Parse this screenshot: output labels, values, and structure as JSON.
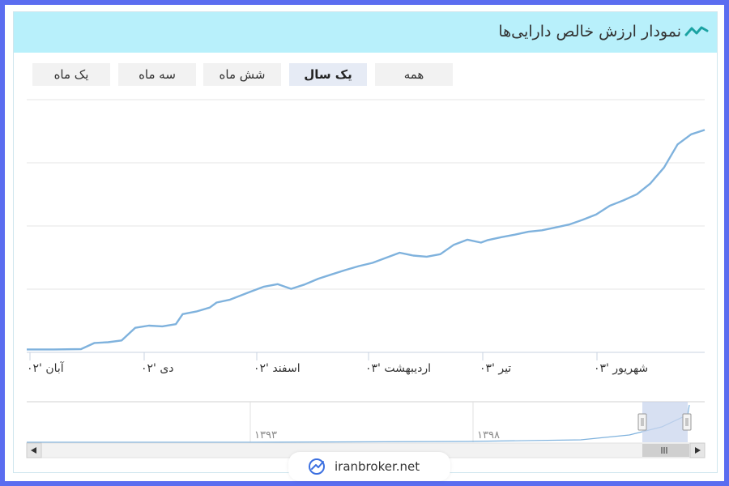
{
  "header": {
    "title": "نمودار ارزش خالص دارایی‌ها",
    "icon": "trend-line-icon"
  },
  "tabs": [
    {
      "label": "همه",
      "active": false
    },
    {
      "label": "یک سال",
      "active": true
    },
    {
      "label": "شش ماه",
      "active": false
    },
    {
      "label": "سه ماه",
      "active": false
    },
    {
      "label": "یک ماه",
      "active": false
    }
  ],
  "colors": {
    "line": "#7fb2dd",
    "grid": "#e6e6e6",
    "header_bg": "#b8f0fb",
    "frame": "#5b6df0",
    "navigator_band": "#c9d6ee"
  },
  "chart_data": {
    "type": "line",
    "grid": true,
    "x_tick_labels": [
      "آبان '۰۲",
      "دی '۰۲",
      "اسفند '۰۲",
      "اردیبهشت '۰۳",
      "تیر '۰۳",
      "شهریور '۰۳"
    ],
    "x": [
      0,
      4,
      8,
      10,
      12,
      14,
      16,
      18,
      20,
      22,
      23,
      25,
      27,
      28,
      30,
      33,
      35,
      37,
      39,
      41,
      43,
      45,
      47,
      49,
      51,
      53,
      55,
      57,
      59,
      61,
      63,
      65,
      67,
      68,
      70,
      72,
      74,
      76,
      78,
      80,
      82,
      84,
      86,
      88,
      90,
      92,
      94,
      96,
      98,
      100
    ],
    "y": [
      0.8,
      0.8,
      0.9,
      2.6,
      2.8,
      3.3,
      6.8,
      7.4,
      7.2,
      7.8,
      10.6,
      11.3,
      12.4,
      13.8,
      14.6,
      16.8,
      18.2,
      18.9,
      17.6,
      18.8,
      20.4,
      21.6,
      22.8,
      23.9,
      24.8,
      26.2,
      27.6,
      26.8,
      26.5,
      27.2,
      29.8,
      31.2,
      30.4,
      31.1,
      31.9,
      32.6,
      33.4,
      33.8,
      34.6,
      35.4,
      36.7,
      38.2,
      40.6,
      42.1,
      43.8,
      46.8,
      51.2,
      57.6,
      60.4,
      61.6
    ],
    "navigator": {
      "labels": [
        "۱۳۹۳",
        "۱۳۹۸"
      ],
      "handle_icon": "range-handle-icon",
      "scrollbar_icon": "scroll-grip-icon"
    }
  },
  "watermark": {
    "text": "iranbroker.net",
    "icon": "trend-logo-icon"
  }
}
